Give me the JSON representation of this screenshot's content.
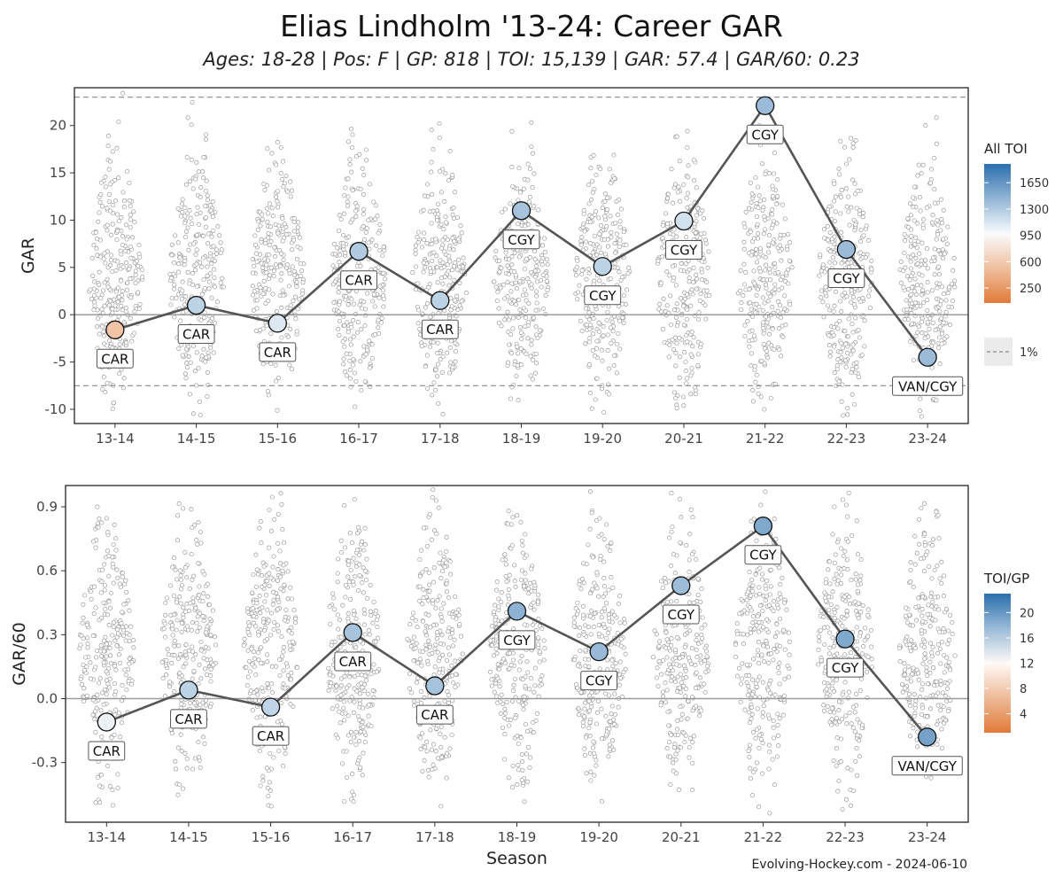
{
  "title": "Elias Lindholm '13-24: Career GAR",
  "subtitle": "Ages: 18-28 | Pos: F | GP: 818 | TOI: 15,139 | GAR: 57.4 | GAR/60: 0.23",
  "caption": "Evolving-Hockey.com - 2024-06-10",
  "colors": {
    "high": "#2b6fad",
    "mid": "#ffffff",
    "low": "#e07b39",
    "line": "#555555",
    "jitter": "#9a9a9a"
  },
  "chart_data": [
    {
      "type": "scatter",
      "title": "",
      "xlabel": "",
      "ylabel": "GAR",
      "ylim": [
        -11.5,
        24
      ],
      "yticks": [
        -10,
        -5,
        0,
        5,
        10,
        15,
        20
      ],
      "yticklabels": [
        "-10",
        "-5",
        "0",
        "5",
        "10",
        "15",
        "20"
      ],
      "reference_lines": {
        "dashed_upper": 23,
        "dashed_lower": -7.5,
        "zero": 0
      },
      "categories": [
        "13-14",
        "14-15",
        "15-16",
        "16-17",
        "17-18",
        "18-19",
        "19-20",
        "20-21",
        "21-22",
        "22-23",
        "23-24"
      ],
      "values": [
        -1.6,
        1.0,
        -0.9,
        6.7,
        1.5,
        11.0,
        5.1,
        9.9,
        22.1,
        6.9,
        -4.5
      ],
      "team_labels": [
        "CAR",
        "CAR",
        "CAR",
        "CAR",
        "CAR",
        "CGY",
        "CGY",
        "CGY",
        "CGY",
        "CGY",
        "VAN/CGY"
      ],
      "color_values": [
        550,
        1250,
        1100,
        1300,
        1250,
        1350,
        1250,
        1150,
        1400,
        1400,
        1400
      ],
      "legend": {
        "title": "All TOI",
        "ticks": [
          250,
          600,
          950,
          1300,
          1650
        ],
        "range": [
          50,
          1900
        ],
        "mid": 950,
        "line_entry": "1%"
      }
    },
    {
      "type": "scatter",
      "title": "",
      "xlabel": "Season",
      "ylabel": "GAR/60",
      "ylim": [
        -0.58,
        1.0
      ],
      "yticks": [
        -0.3,
        0.0,
        0.3,
        0.6,
        0.9
      ],
      "yticklabels": [
        "-0.3",
        "0.0",
        "0.3",
        "0.6",
        "0.9"
      ],
      "reference_lines": {
        "zero": 0
      },
      "categories": [
        "13-14",
        "14-15",
        "15-16",
        "16-17",
        "17-18",
        "18-19",
        "19-20",
        "20-21",
        "21-22",
        "22-23",
        "23-24"
      ],
      "values": [
        -0.11,
        0.04,
        -0.04,
        0.31,
        0.06,
        0.41,
        0.22,
        0.53,
        0.81,
        0.28,
        -0.18
      ],
      "team_labels": [
        "CAR",
        "CAR",
        "CAR",
        "CAR",
        "CAR",
        "CGY",
        "CGY",
        "CGY",
        "CGY",
        "CGY",
        "VAN/CGY"
      ],
      "color_values": [
        13.5,
        15.8,
        15.6,
        16.8,
        16.9,
        18.1,
        17.6,
        17.4,
        18.8,
        18.8,
        19.3
      ],
      "legend": {
        "title": "TOI/GP",
        "ticks": [
          4,
          8,
          12,
          16,
          20
        ],
        "range": [
          1,
          23
        ],
        "mid": 12.5
      }
    }
  ]
}
